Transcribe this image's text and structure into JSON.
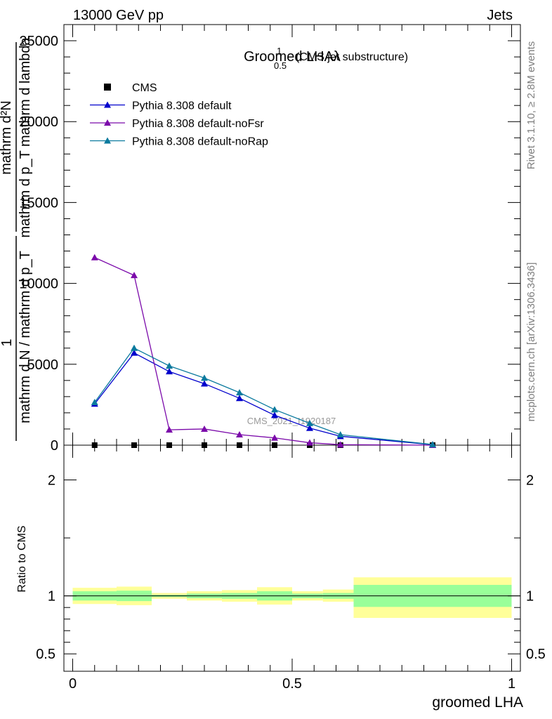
{
  "header": {
    "left": "13000 GeV pp",
    "right": "Jets"
  },
  "side_labels": {
    "rivet": "Rivet 3.1.10, ≥ 2.8M events",
    "mcplots": "mcplots.cern.ch [arXiv:1306.3436]"
  },
  "watermark": "CMS_2021_I1920187",
  "chart_data": [
    {
      "type": "line",
      "title_main": "Groomed LHA",
      "title_lambda": "λ",
      "title_sup": "1",
      "title_sub": "0.5",
      "title_suffix": "(CMS jet substructure)",
      "ylabel_top_numerator": "1",
      "ylabel_top_denominator": "mathrm d N / mathrm d p_T",
      "ylabel_main_numerator": "mathrm d²N",
      "ylabel_main_denominator": "mathrm d p_T mathrm d lambda",
      "xlim": [
        -0.02,
        1.02
      ],
      "ylim": [
        0,
        26000
      ],
      "yticks": [
        0,
        5000,
        10000,
        15000,
        20000,
        25000
      ],
      "ytick_labels": [
        "0",
        "5000",
        "10000",
        "15000",
        "20000",
        "25000"
      ],
      "legend_position": "top-left",
      "series": [
        {
          "name": "CMS",
          "marker": "square",
          "color": "#000000",
          "x": [
            0.05,
            0.14,
            0.22,
            0.3,
            0.38,
            0.46,
            0.54,
            0.61,
            0.82
          ],
          "y": [
            0,
            0,
            0,
            0,
            0,
            0,
            0,
            0,
            0
          ]
        },
        {
          "name": "Pythia 8.308 default",
          "marker": "triangle",
          "color": "#0000cc",
          "x": [
            0.05,
            0.14,
            0.22,
            0.3,
            0.38,
            0.46,
            0.54,
            0.61,
            0.82
          ],
          "y": [
            2550,
            5700,
            4550,
            3800,
            2900,
            1850,
            1050,
            550,
            30
          ]
        },
        {
          "name": "Pythia 8.308 default-noFsr",
          "marker": "triangle",
          "color": "#7b0aaa",
          "x": [
            0.05,
            0.14,
            0.22,
            0.3,
            0.38,
            0.46,
            0.54,
            0.61,
            0.82
          ],
          "y": [
            11600,
            10500,
            950,
            1000,
            650,
            450,
            150,
            30,
            0
          ]
        },
        {
          "name": "Pythia 8.308 default-noRap",
          "marker": "triangle",
          "color": "#0b7a9e",
          "x": [
            0.05,
            0.14,
            0.22,
            0.3,
            0.38,
            0.46,
            0.54,
            0.61,
            0.82
          ],
          "y": [
            2650,
            6000,
            4900,
            4150,
            3250,
            2200,
            1350,
            650,
            40
          ]
        }
      ]
    },
    {
      "type": "area",
      "ylabel": "Ratio to CMS",
      "xlabel": "groomed LHA",
      "xlim": [
        -0.02,
        1.02
      ],
      "ylim": [
        0.35,
        2.3
      ],
      "yticks": [
        0.5,
        1,
        2
      ],
      "ytick_labels": [
        "0.5",
        "1",
        "2"
      ],
      "xticks": [
        0,
        0.5,
        1
      ],
      "xtick_labels": [
        "0",
        "0.5",
        "1"
      ],
      "reference_line": 1,
      "band_colors": {
        "inner": "#99ff99",
        "outer": "#ffff99"
      },
      "bins": [
        {
          "x_low": 0.0,
          "x_high": 0.1,
          "inner": [
            0.96,
            1.04
          ],
          "outer": [
            0.93,
            1.07
          ]
        },
        {
          "x_low": 0.1,
          "x_high": 0.18,
          "inner": [
            0.955,
            1.045
          ],
          "outer": [
            0.92,
            1.08
          ]
        },
        {
          "x_low": 0.18,
          "x_high": 0.26,
          "inner": [
            0.99,
            1.01
          ],
          "outer": [
            0.975,
            1.025
          ]
        },
        {
          "x_low": 0.26,
          "x_high": 0.34,
          "inner": [
            0.98,
            1.02
          ],
          "outer": [
            0.96,
            1.04
          ]
        },
        {
          "x_low": 0.34,
          "x_high": 0.42,
          "inner": [
            0.975,
            1.025
          ],
          "outer": [
            0.95,
            1.05
          ]
        },
        {
          "x_low": 0.42,
          "x_high": 0.5,
          "inner": [
            0.96,
            1.04
          ],
          "outer": [
            0.925,
            1.075
          ]
        },
        {
          "x_low": 0.5,
          "x_high": 0.57,
          "inner": [
            0.98,
            1.02
          ],
          "outer": [
            0.96,
            1.04
          ]
        },
        {
          "x_low": 0.57,
          "x_high": 0.64,
          "inner": [
            0.975,
            1.025
          ],
          "outer": [
            0.95,
            1.055
          ]
        },
        {
          "x_low": 0.64,
          "x_high": 1.0,
          "inner": [
            0.905,
            1.095
          ],
          "outer": [
            0.81,
            1.16
          ]
        }
      ]
    }
  ]
}
